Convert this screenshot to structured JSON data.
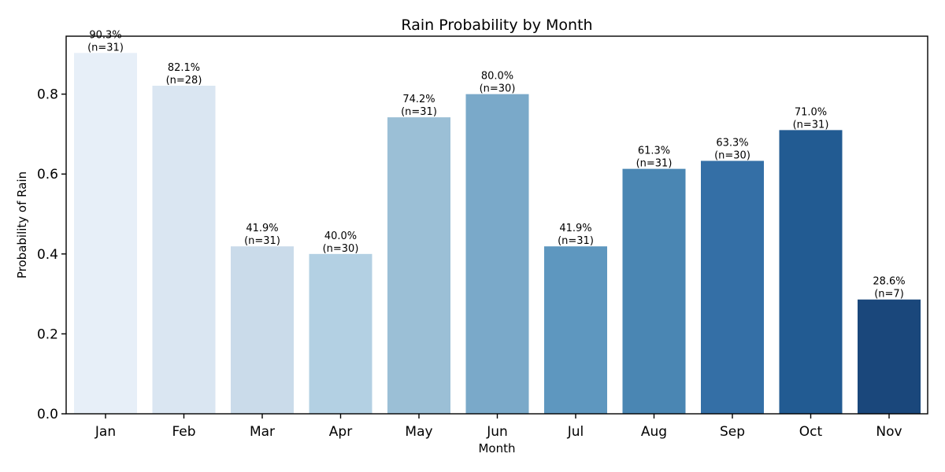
{
  "chart_data": {
    "type": "bar",
    "title": "Rain Probability by Month",
    "xlabel": "Month",
    "ylabel": "Probability of Rain",
    "ylim": [
      0,
      0.945
    ],
    "yticks": [
      0.0,
      0.2,
      0.4,
      0.6,
      0.8
    ],
    "ytick_labels": [
      "0.0",
      "0.2",
      "0.4",
      "0.6",
      "0.8"
    ],
    "grid": false,
    "categories": [
      "Jan",
      "Feb",
      "Mar",
      "Apr",
      "May",
      "Jun",
      "Jul",
      "Aug",
      "Sep",
      "Oct",
      "Nov"
    ],
    "values": [
      0.903,
      0.821,
      0.419,
      0.4,
      0.742,
      0.8,
      0.419,
      0.613,
      0.633,
      0.71,
      0.286
    ],
    "percent_labels": [
      "90.3%",
      "82.1%",
      "41.9%",
      "40.0%",
      "74.2%",
      "80.0%",
      "41.9%",
      "61.3%",
      "63.3%",
      "71.0%",
      "28.6%"
    ],
    "count_labels": [
      "(n=31)",
      "(n=28)",
      "(n=31)",
      "(n=30)",
      "(n=31)",
      "(n=30)",
      "(n=31)",
      "(n=31)",
      "(n=30)",
      "(n=31)",
      "(n=7)"
    ],
    "colors": [
      "#e7eff8",
      "#dae6f2",
      "#cadbea",
      "#b3d0e3",
      "#9bbfd6",
      "#7aa9c9",
      "#5e97bf",
      "#4a86b3",
      "#346fa6",
      "#225b92",
      "#1a477b"
    ]
  }
}
